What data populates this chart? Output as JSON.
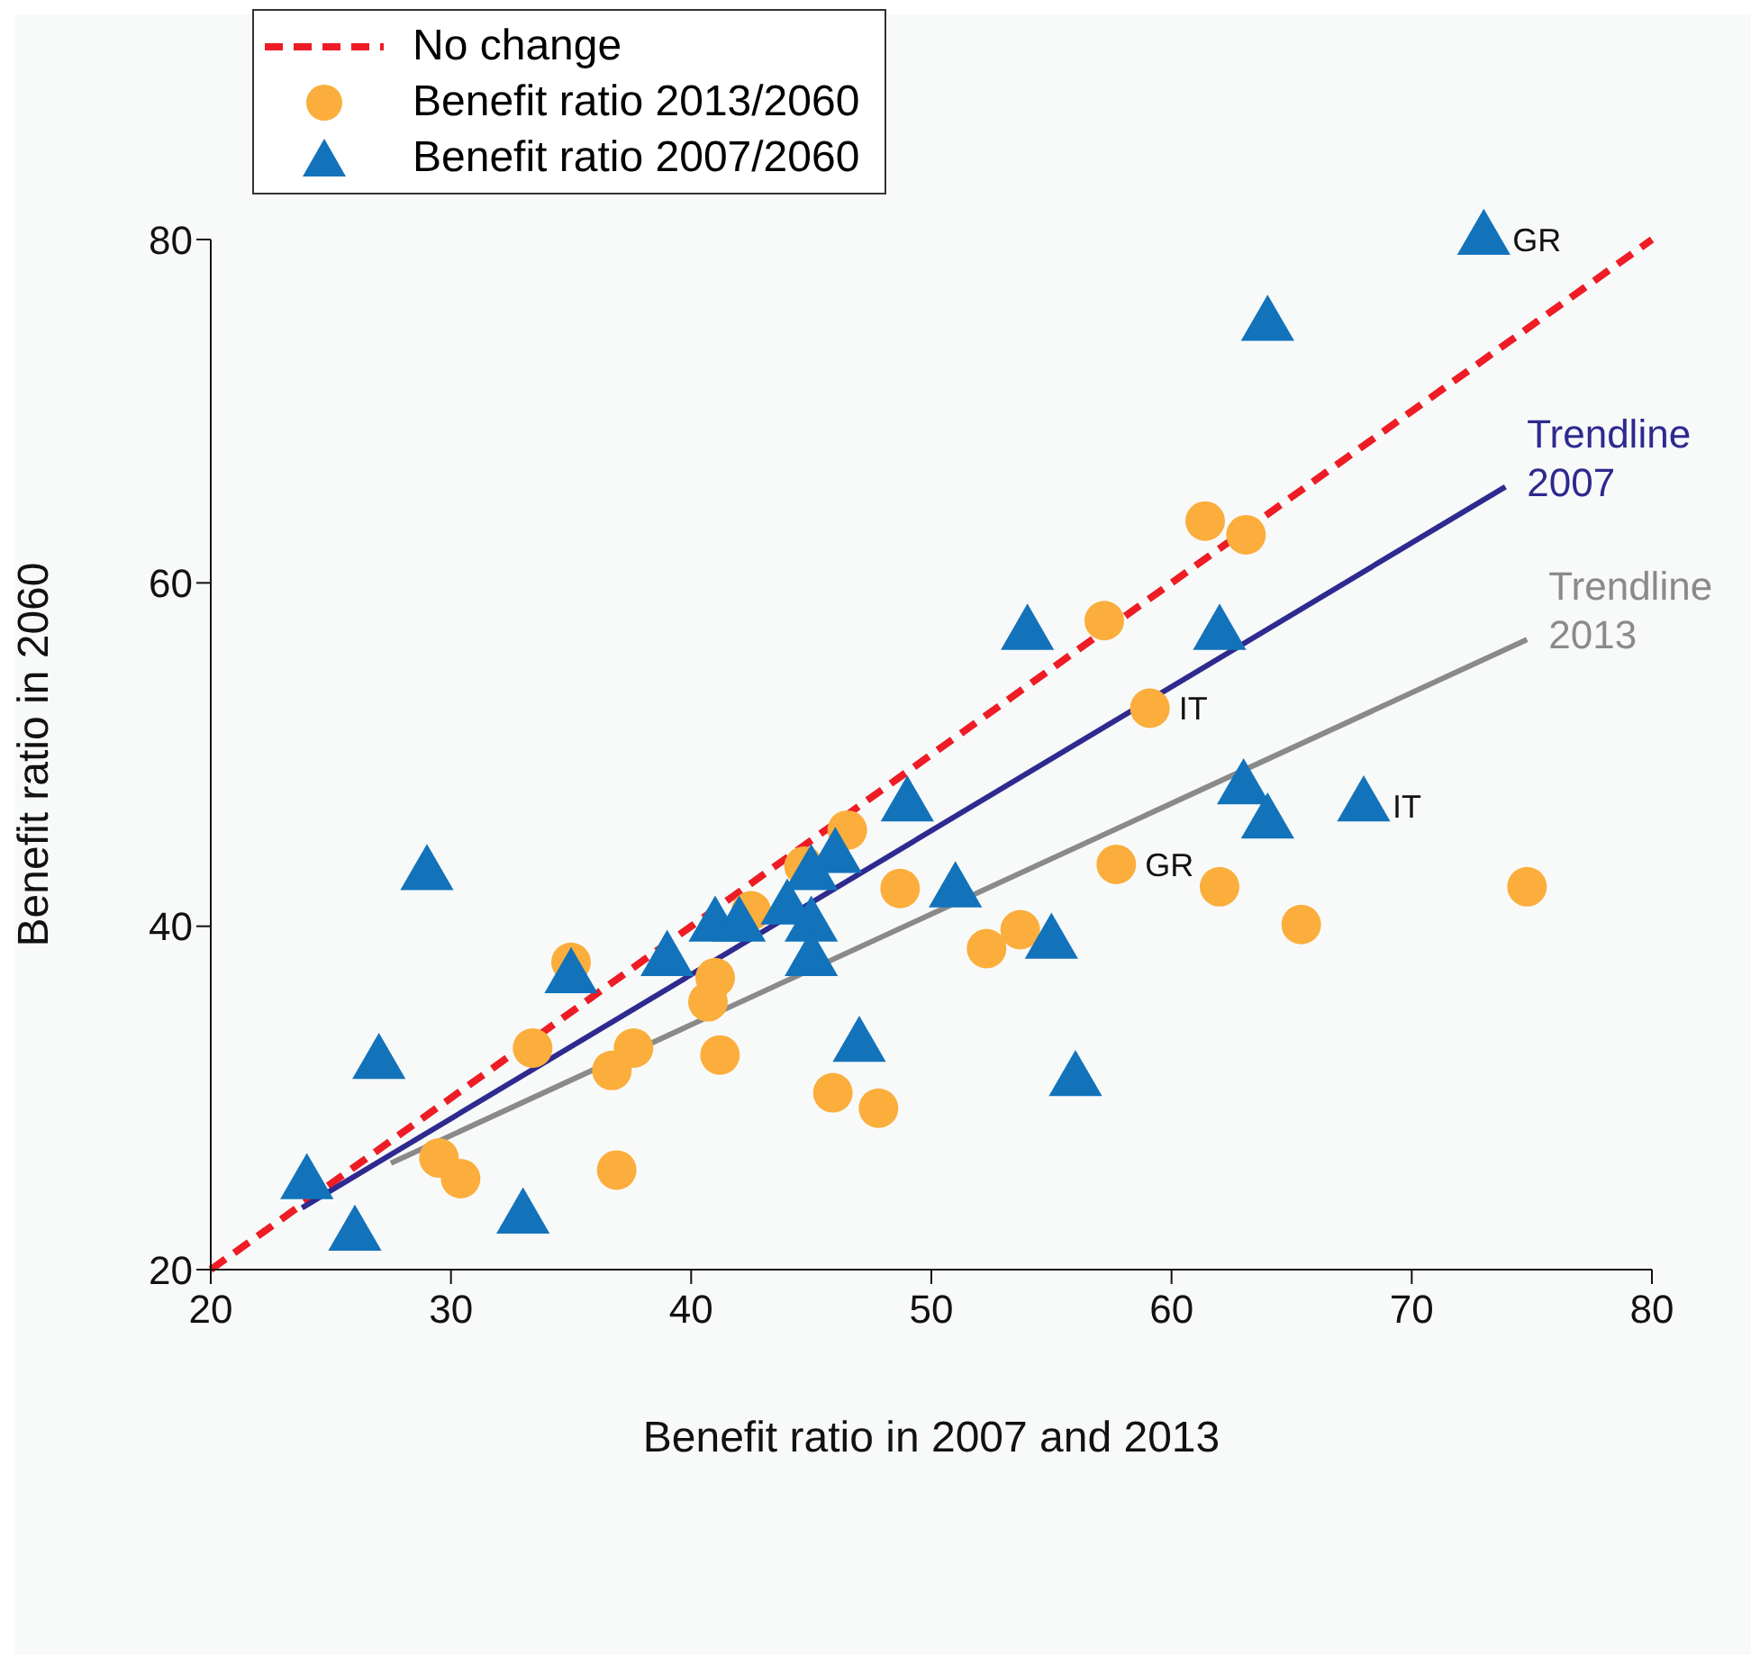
{
  "chart_data": {
    "type": "scatter",
    "xlabel": "Benefit ratio in 2007 and 2013",
    "ylabel": "Benefit ratio in 2060",
    "xlim": [
      20,
      80
    ],
    "ylim": [
      20,
      80
    ],
    "xticks": [
      20,
      30,
      40,
      50,
      60,
      70,
      80
    ],
    "yticks": [
      20,
      40,
      60,
      80
    ],
    "legend": "top left",
    "series": [
      {
        "name": "No change",
        "type": "line",
        "line_style": "dashed",
        "color": "#ee1c25",
        "x": [
          20,
          80
        ],
        "values": [
          20,
          80
        ]
      },
      {
        "name": "Benefit ratio 2013/2060",
        "marker": "circle",
        "color": "#fbae3c",
        "x": [
          29.5,
          30.4,
          33.4,
          35,
          36.7,
          36.9,
          37.6,
          40.7,
          41,
          41.2,
          42.5,
          44.7,
          45.9,
          46.5,
          47.8,
          48.7,
          52.3,
          53.7,
          57.2,
          57.7,
          59.1,
          61.4,
          62,
          63.1,
          65.4,
          74.8
        ],
        "values": [
          26.5,
          25.3,
          32.9,
          37.9,
          31.6,
          25.8,
          32.9,
          35.6,
          37,
          32.5,
          40.9,
          43.5,
          30.3,
          45.6,
          29.4,
          42.2,
          38.7,
          39.8,
          57.8,
          43.6,
          52.7,
          63.6,
          42.3,
          62.8,
          40.1,
          42.3
        ]
      },
      {
        "name": "Benefit ratio 2007/2060",
        "marker": "triangle",
        "color": "#1273bb",
        "x": [
          24,
          26,
          27,
          29,
          33,
          35,
          39,
          41,
          42,
          44,
          45,
          46,
          45,
          45,
          47,
          49,
          51,
          54,
          55,
          56,
          62,
          63,
          64,
          68,
          64,
          73
        ],
        "values": [
          25,
          22,
          32,
          43,
          23,
          37,
          38,
          40,
          40,
          41,
          43,
          44,
          40,
          38,
          33,
          47,
          42,
          57,
          39,
          31,
          57,
          48,
          46,
          47,
          75,
          80
        ]
      },
      {
        "name": "Trendline 2007",
        "type": "line",
        "line_style": "solid",
        "color": "#2e2a8f",
        "x": [
          23.8,
          73.9
        ],
        "values": [
          23.6,
          65.6
        ]
      },
      {
        "name": "Trendline 2013",
        "type": "line",
        "line_style": "solid",
        "color": "#8a8a8a",
        "x": [
          27.5,
          74.8
        ],
        "values": [
          26.2,
          56.7
        ]
      }
    ],
    "annotations": [
      {
        "text": "GR",
        "x": 73,
        "y": 80
      },
      {
        "text": "IT",
        "x": 59.1,
        "y": 52.7
      },
      {
        "text": "GR",
        "x": 57.7,
        "y": 43.6
      },
      {
        "text": "IT",
        "x": 68,
        "y": 47
      }
    ]
  }
}
